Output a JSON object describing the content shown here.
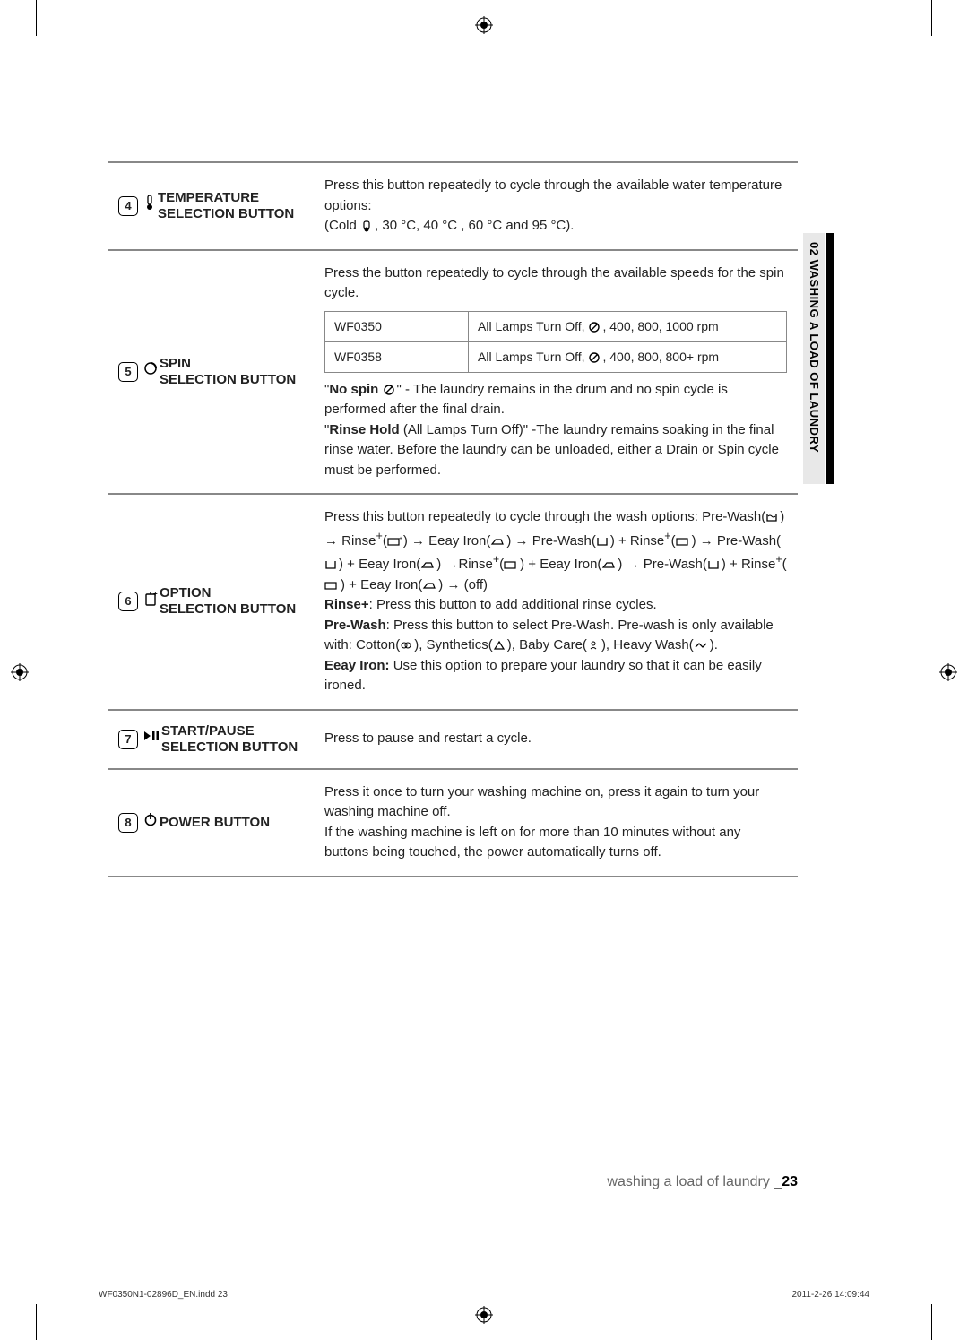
{
  "sideTab": "02 WASHING A LOAD OF LAUNDRY",
  "rows": [
    {
      "num": "4",
      "iconSvg": "thermo",
      "label": "TEMPERATURE SELECTION BUTTON",
      "descHtml": "Press this button repeatedly to cycle through the available water temperature options:<br>(Cold <svg class='icon' width='14' height='14' viewBox='0 0 14 14'><rect x='4' y='2' width='6' height='8' rx='2' fill='none' stroke='#000' stroke-width='1.2'/><circle cx='7' cy='11' r='2.5' fill='#000'/></svg>, 30 °C, 40 °C , 60 °C and 95 °C)."
    },
    {
      "num": "5",
      "iconSvg": "spin",
      "label": "SPIN SELECTION BUTTON",
      "topDesc": "Press the button repeatedly to cycle through the available speeds for the spin cycle.",
      "inner": [
        {
          "c1": "WF0350",
          "c2": "All Lamps Turn Off, <svg class='icon' width='14' height='14' viewBox='0 0 14 14'><circle cx='7' cy='7' r='5' fill='none' stroke='#000' stroke-width='1.4'/><line x1='3' y1='11' x2='11' y2='3' stroke='#000' stroke-width='1.4'/></svg>, 400, 800, 1000 rpm"
        },
        {
          "c1": "WF0358",
          "c2": "All Lamps Turn Off, <svg class='icon' width='14' height='14' viewBox='0 0 14 14'><circle cx='7' cy='7' r='5' fill='none' stroke='#000' stroke-width='1.4'/><line x1='3' y1='11' x2='11' y2='3' stroke='#000' stroke-width='1.4'/></svg>, 400, 800, 800+ rpm"
        }
      ],
      "bottomDesc": "\"<strong>No spin</strong> <svg class='icon' width='14' height='14' viewBox='0 0 14 14'><circle cx='7' cy='7' r='5' fill='none' stroke='#000' stroke-width='1.4'/><line x1='3' y1='11' x2='11' y2='3' stroke='#000' stroke-width='1.4'/></svg>\" - The laundry remains in the drum and no spin cycle is performed after the final drain.<br>\"<strong>Rinse Hold</strong> (All Lamps Turn Off)\" -The laundry remains soaking in the final rinse water. Before the laundry can be unloaded, either a Drain or Spin cycle must be performed."
    },
    {
      "num": "6",
      "iconSvg": "option",
      "label": "OPTION SELECTION BUTTON",
      "descHtml": "Press this button repeatedly to cycle through the wash options: Pre-Wash(<svg class='icon' width='14' height='12' viewBox='0 0 14 12'><path d='M2 2 L2 10 L12 10 L12 2' fill='none' stroke='#000' stroke-width='1.3'/><path d='M3 5 Q5 3 7 5 T11 5' fill='none' stroke='#000' stroke-width='1'/></svg>) → Rinse<sup>+</sup>(<svg class='icon' width='16' height='12' viewBox='0 0 16 12'><rect x='1' y='3' width='12' height='7' fill='none' stroke='#000' stroke-width='1.2'/><text x='13' y='5' font-size='7'>+</text></svg>) → Eeay Iron(<svg class='icon' width='16' height='12' viewBox='0 0 16 12'><path d='M2 9 L14 9 L12 4 L6 4 Z' fill='none' stroke='#000' stroke-width='1.2'/></svg>) → Pre-Wash(<svg class='icon' width='14' height='12' viewBox='0 0 14 12'><path d='M2 2 L2 10 L12 10 L12 2' fill='none' stroke='#000' stroke-width='1.3'/></svg>) + Rinse<sup>+</sup>(<svg class='icon' width='16' height='12' viewBox='0 0 16 12'><rect x='1' y='3' width='12' height='7' fill='none' stroke='#000' stroke-width='1.2'/></svg>) → Pre-Wash(<svg class='icon' width='14' height='12' viewBox='0 0 14 12'><path d='M2 2 L2 10 L12 10 L12 2' fill='none' stroke='#000' stroke-width='1.3'/></svg>) + Eeay Iron(<svg class='icon' width='16' height='12' viewBox='0 0 16 12'><path d='M2 9 L14 9 L12 4 L6 4 Z' fill='none' stroke='#000' stroke-width='1.2'/></svg>) →Rinse<sup>+</sup>(<svg class='icon' width='16' height='12' viewBox='0 0 16 12'><rect x='1' y='3' width='12' height='7' fill='none' stroke='#000' stroke-width='1.2'/></svg>) + Eeay Iron(<svg class='icon' width='16' height='12' viewBox='0 0 16 12'><path d='M2 9 L14 9 L12 4 L6 4 Z' fill='none' stroke='#000' stroke-width='1.2'/></svg>) → Pre-Wash(<svg class='icon' width='14' height='12' viewBox='0 0 14 12'><path d='M2 2 L2 10 L12 10 L12 2' fill='none' stroke='#000' stroke-width='1.3'/></svg>) + Rinse<sup>+</sup>(<svg class='icon' width='16' height='12' viewBox='0 0 16 12'><rect x='1' y='3' width='12' height='7' fill='none' stroke='#000' stroke-width='1.2'/></svg>) + Eeay Iron(<svg class='icon' width='16' height='12' viewBox='0 0 16 12'><path d='M2 9 L14 9 L12 4 L6 4 Z' fill='none' stroke='#000' stroke-width='1.2'/></svg>) → (off)<br><strong>Rinse+</strong>: Press this button to add additional rinse cycles.<br><strong>Pre-Wash</strong>: Press this button to select Pre-Wash. Pre-wash is only available with: Cotton(<svg class='icon' width='14' height='12' viewBox='0 0 14 12'><circle cx='5' cy='6' r='3' fill='none' stroke='#000' stroke-width='1'/><circle cx='9' cy='6' r='3' fill='none' stroke='#000' stroke-width='1'/></svg>), Synthetics(<svg class='icon' width='14' height='12' viewBox='0 0 14 12'><path d='M7 2 L12 10 L2 10 Z' fill='none' stroke='#000' stroke-width='1.2'/></svg>), Baby Care(<svg class='icon' width='14' height='12' viewBox='0 0 14 12'><circle cx='7' cy='4' r='2' fill='none' stroke='#000' stroke-width='1'/><path d='M4 10 Q7 7 10 10' fill='none' stroke='#000' stroke-width='1'/></svg>), Heavy Wash(<svg class='icon' width='16' height='12' viewBox='0 0 16 12'><path d='M2 8 L6 4 L10 8 L14 4' fill='none' stroke='#000' stroke-width='1.3'/></svg>).<br><strong>Eeay Iron:</strong> Use this option to prepare your laundry so that it can be easily ironed."
    },
    {
      "num": "7",
      "iconSvg": "playpause",
      "label": "START/PAUSE SELECTION BUTTON",
      "descHtml": "Press to pause and restart a cycle."
    },
    {
      "num": "8",
      "iconSvg": "power",
      "label": "POWER BUTTON",
      "descHtml": "Press it once to turn your washing machine on, press it again to turn your washing machine off.<br>If the washing machine is left on for more than 10 minutes without any buttons being touched, the power automatically turns off."
    }
  ],
  "footer": {
    "text": "washing a load of laundry _",
    "page": "23"
  },
  "printMeta": {
    "left": "WF0350N1-02896D_EN.indd   23",
    "right": "2011-2-26   14:09:44"
  },
  "iconSvgs": {
    "thermo": "<svg width='14' height='18' viewBox='0 0 14 18'><rect x='5' y='1' width='4' height='10' rx='2' fill='none' stroke='#000' stroke-width='1.3'/><circle cx='7' cy='14' r='3' fill='#000'/></svg>",
    "spin": "<svg width='16' height='16' viewBox='0 0 16 16'><circle cx='8' cy='8' r='6' fill='none' stroke='#000' stroke-width='1.5'/><path d='M8 2 A6 6 0 0 1 14 8' fill='none' stroke='#000' stroke-width='2'/></svg>",
    "option": "<svg width='16' height='18' viewBox='0 0 16 18'><rect x='3' y='4' width='10' height='12' rx='1' fill='none' stroke='#000' stroke-width='1.4'/><line x1='8' y1='1' x2='8' y2='4' stroke='#000' stroke-width='1.4'/><text x='11' y='6' font-size='8' font-weight='bold'>+</text></svg>",
    "playpause": "<svg width='18' height='14' viewBox='0 0 18 14'><path d='M1 2 L1 12 L8 7 Z' fill='#000'/><rect x='10' y='2' width='2.5' height='10' fill='#000'/><rect x='14.5' y='2' width='2.5' height='10' fill='#000'/></svg>",
    "power": "<svg width='16' height='16' viewBox='0 0 16 16'><circle cx='8' cy='9' r='5.5' fill='none' stroke='#000' stroke-width='1.6'/><line x1='8' y1='1' x2='8' y2='8' stroke='#000' stroke-width='1.8'/></svg>"
  }
}
